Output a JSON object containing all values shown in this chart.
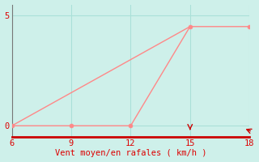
{
  "bg_color": "#cef0ea",
  "line_color": "#ff8888",
  "marker_color": "#ff8888",
  "line1_x": [
    6,
    15
  ],
  "line1_y": [
    0,
    4.5
  ],
  "line2_x": [
    6,
    9,
    12,
    15,
    18
  ],
  "line2_y": [
    0,
    0,
    0,
    4.5,
    4.5
  ],
  "xlabel": "Vent moyen/en rafales ( km/h )",
  "xlabel_color": "#dd0000",
  "xlabel_fontsize": 7.5,
  "xlim": [
    6,
    18
  ],
  "ylim": [
    -0.5,
    5.5
  ],
  "xticks": [
    6,
    9,
    12,
    15,
    18
  ],
  "yticks": [
    0,
    5
  ],
  "grid_color": "#aae0d8",
  "tick_color": "#dd0000",
  "bottom_spine_color": "#cc0000",
  "left_spine_color": "#777777",
  "linewidth": 1.0,
  "markersize": 3.5,
  "tick_fontsize": 7.5
}
